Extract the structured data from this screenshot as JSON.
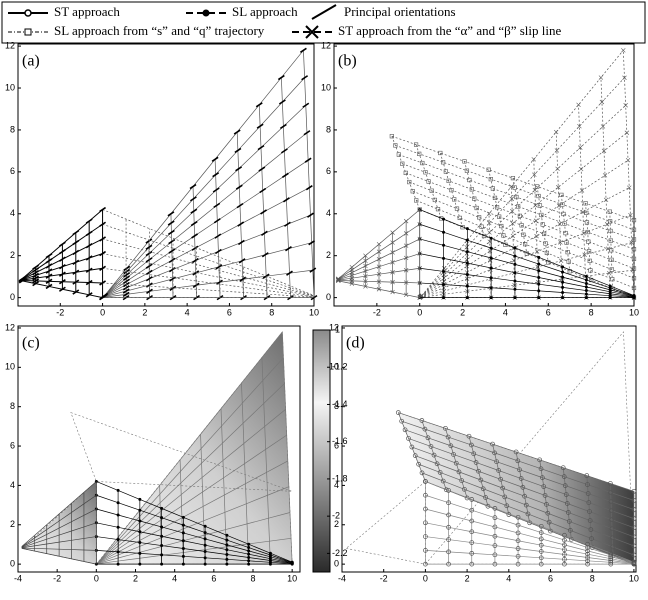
{
  "legend": {
    "items": [
      "ST approach",
      "SL approach",
      "Principal orientations",
      "SL approach from “s” and “q” trajectory",
      "ST approach from the “α” and “β” slip line"
    ]
  },
  "panels": [
    {
      "label": "(a)",
      "xlim": [
        -4,
        10
      ],
      "ylim": [
        -0.4,
        12.1
      ],
      "xticks": [
        -2,
        0,
        2,
        4,
        6,
        8,
        10
      ],
      "yticks": [
        0,
        2,
        4,
        6,
        8,
        10,
        12
      ]
    },
    {
      "label": "(b)",
      "xlim": [
        -4,
        10
      ],
      "ylim": [
        -0.4,
        12.1
      ],
      "xticks": [
        -2,
        0,
        2,
        4,
        6,
        8,
        10
      ],
      "yticks": [
        0,
        2,
        4,
        6,
        8,
        10,
        12
      ]
    },
    {
      "label": "(c)",
      "xlim": [
        -4,
        10.4
      ],
      "ylim": [
        -0.4,
        12.1
      ],
      "xticks": [
        -4,
        -2,
        0,
        2,
        4,
        6,
        8,
        10
      ],
      "yticks": [
        0,
        2,
        4,
        6,
        8,
        10,
        12
      ]
    },
    {
      "label": "(d)",
      "xlim": [
        -4,
        10.1
      ],
      "ylim": [
        -0.4,
        12.1
      ],
      "xticks": [
        -4,
        -2,
        0,
        2,
        4,
        6,
        8,
        10
      ],
      "yticks": [
        0,
        2,
        4,
        6,
        8,
        10,
        12
      ]
    }
  ],
  "colorbar": {
    "lim": [
      -2.3,
      -1
    ],
    "ticks": [
      -1,
      -1.2,
      -1.4,
      -1.6,
      -1.8,
      -2,
      -2.2
    ]
  }
}
